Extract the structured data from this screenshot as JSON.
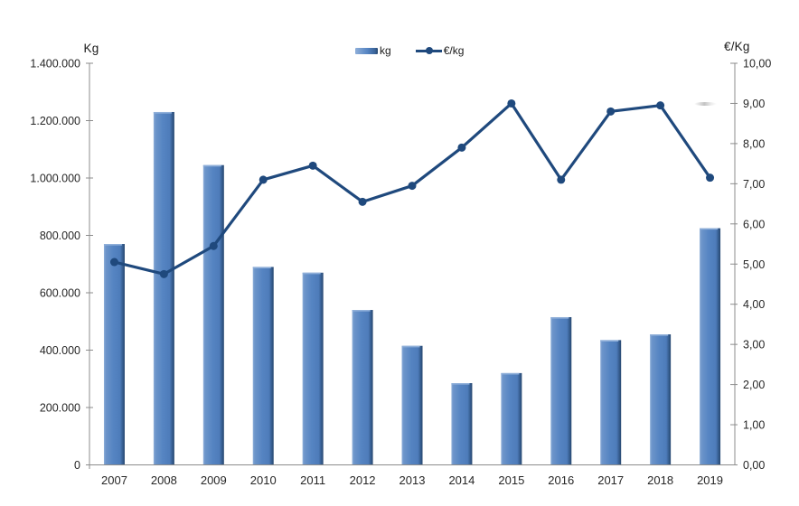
{
  "chart_data": {
    "type": "combo-bar-line",
    "title": "",
    "categories": [
      "2007",
      "2008",
      "2009",
      "2010",
      "2011",
      "2012",
      "2013",
      "2014",
      "2015",
      "2016",
      "2017",
      "2018",
      "2019"
    ],
    "series": [
      {
        "name": "kg",
        "type": "bar",
        "axis": "left",
        "values": [
          770000,
          1230000,
          1045000,
          690000,
          670000,
          540000,
          415000,
          285000,
          320000,
          515000,
          435000,
          455000,
          825000
        ]
      },
      {
        "name": "€/kg",
        "type": "line",
        "axis": "right",
        "values": [
          5.05,
          4.75,
          5.45,
          7.1,
          7.45,
          6.55,
          6.95,
          7.9,
          9.0,
          7.1,
          8.8,
          8.95,
          7.15
        ]
      }
    ],
    "left_axis": {
      "title": "Kg",
      "min": 0,
      "max": 1400000,
      "tick_labels": [
        "0",
        "200.000",
        "400.000",
        "600.000",
        "800.000",
        "1.000.000",
        "1.200.000",
        "1.400.000"
      ]
    },
    "right_axis": {
      "title": "€/Kg",
      "min": 0,
      "max": 10,
      "tick_labels": [
        "0,00",
        "1,00",
        "2,00",
        "3,00",
        "4,00",
        "5,00",
        "6,00",
        "7,00",
        "8,00",
        "9,00",
        "10,00"
      ]
    },
    "legend": [
      {
        "label": "kg",
        "marker": "bar-swatch"
      },
      {
        "label": "€/kg",
        "marker": "line-swatch"
      }
    ],
    "grid": "off",
    "legend_position": "top-center"
  },
  "colors": {
    "bar_light": "#8FAFD9",
    "bar_mid": "#5584C2",
    "bar_mid2": "#4E7CBA",
    "bar_dark_edge": "#3A6398",
    "bar_darkest": "#27476F",
    "line": "#1F497D",
    "axis": "#8C8C8C",
    "tick_text": "#262626"
  }
}
